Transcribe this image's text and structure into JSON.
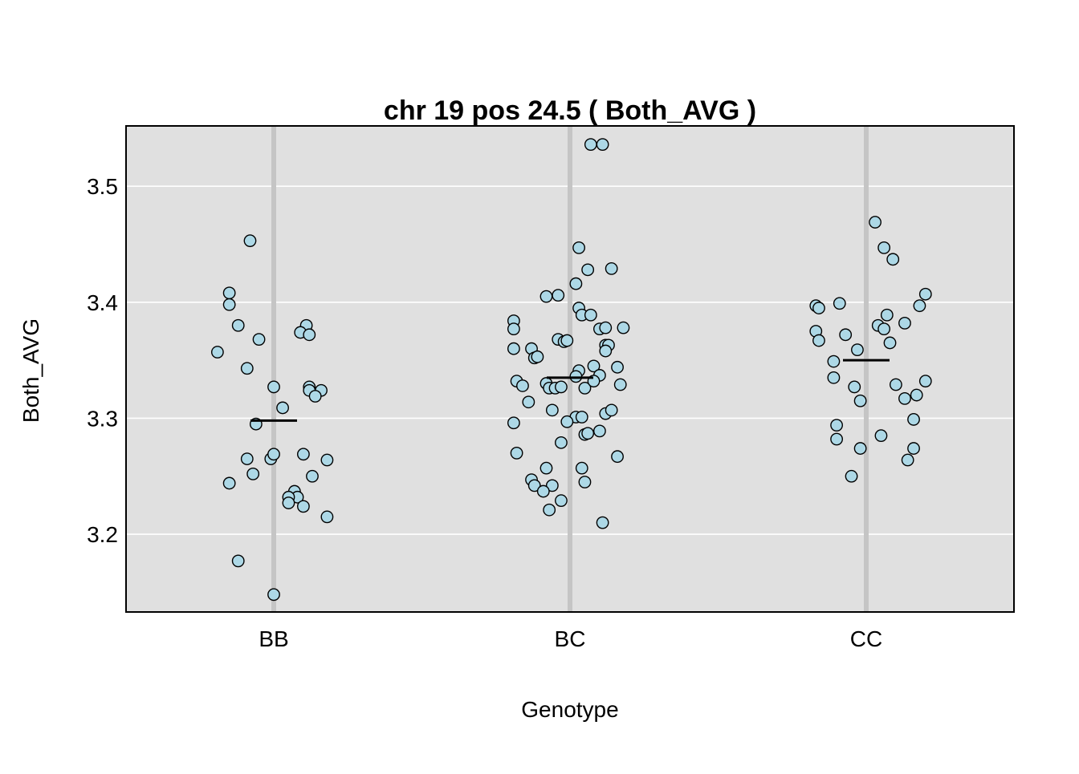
{
  "chart_data": {
    "type": "scatter",
    "title": "chr 19 pos 24.5 ( Both_AVG )",
    "xlabel": "Genotype",
    "ylabel": "Both_AVG",
    "categories": [
      "BB",
      "BC",
      "CC"
    ],
    "ylim": [
      3.133,
      3.552
    ],
    "yticks": [
      3.2,
      3.3,
      3.4,
      3.5
    ],
    "ytick_labels": [
      "3.2",
      "3.3",
      "3.4",
      "3.5"
    ],
    "grid": true,
    "legend": "none",
    "colors": {
      "panel_bg": "#e0e0e0",
      "grid": "#ffffff",
      "category_line": "#c5c5c5",
      "point_fill": "#add8e6",
      "point_stroke": "#000000",
      "mean_line": "#000000"
    },
    "groups": [
      {
        "category": "BB",
        "mean": 3.298,
        "points": [
          {
            "jitter": -0.08,
            "y": 3.453
          },
          {
            "jitter": -0.15,
            "y": 3.408
          },
          {
            "jitter": -0.15,
            "y": 3.398
          },
          {
            "jitter": -0.12,
            "y": 3.38
          },
          {
            "jitter": -0.05,
            "y": 3.368
          },
          {
            "jitter": -0.19,
            "y": 3.357
          },
          {
            "jitter": -0.09,
            "y": 3.343
          },
          {
            "jitter": 0.0,
            "y": 3.327
          },
          {
            "jitter": 0.03,
            "y": 3.309
          },
          {
            "jitter": -0.06,
            "y": 3.295
          },
          {
            "jitter": 0.11,
            "y": 3.38
          },
          {
            "jitter": 0.09,
            "y": 3.374
          },
          {
            "jitter": 0.12,
            "y": 3.372
          },
          {
            "jitter": 0.12,
            "y": 3.327
          },
          {
            "jitter": 0.12,
            "y": 3.324
          },
          {
            "jitter": 0.16,
            "y": 3.324
          },
          {
            "jitter": 0.14,
            "y": 3.319
          },
          {
            "jitter": -0.09,
            "y": 3.265
          },
          {
            "jitter": -0.15,
            "y": 3.244
          },
          {
            "jitter": -0.07,
            "y": 3.252
          },
          {
            "jitter": -0.01,
            "y": 3.265
          },
          {
            "jitter": 0.0,
            "y": 3.269
          },
          {
            "jitter": 0.1,
            "y": 3.269
          },
          {
            "jitter": 0.18,
            "y": 3.264
          },
          {
            "jitter": 0.13,
            "y": 3.25
          },
          {
            "jitter": 0.07,
            "y": 3.237
          },
          {
            "jitter": 0.08,
            "y": 3.232
          },
          {
            "jitter": 0.05,
            "y": 3.232
          },
          {
            "jitter": 0.05,
            "y": 3.227
          },
          {
            "jitter": 0.1,
            "y": 3.224
          },
          {
            "jitter": 0.18,
            "y": 3.215
          },
          {
            "jitter": -0.12,
            "y": 3.177
          },
          {
            "jitter": 0.0,
            "y": 3.148
          }
        ]
      },
      {
        "category": "BC",
        "mean": 3.335,
        "points": [
          {
            "jitter": 0.07,
            "y": 3.536
          },
          {
            "jitter": 0.11,
            "y": 3.536
          },
          {
            "jitter": 0.03,
            "y": 3.447
          },
          {
            "jitter": 0.06,
            "y": 3.428
          },
          {
            "jitter": 0.14,
            "y": 3.429
          },
          {
            "jitter": 0.02,
            "y": 3.416
          },
          {
            "jitter": -0.08,
            "y": 3.405
          },
          {
            "jitter": -0.04,
            "y": 3.406
          },
          {
            "jitter": 0.03,
            "y": 3.395
          },
          {
            "jitter": 0.04,
            "y": 3.389
          },
          {
            "jitter": 0.07,
            "y": 3.389
          },
          {
            "jitter": -0.19,
            "y": 3.384
          },
          {
            "jitter": -0.19,
            "y": 3.377
          },
          {
            "jitter": 0.1,
            "y": 3.377
          },
          {
            "jitter": 0.12,
            "y": 3.378
          },
          {
            "jitter": 0.18,
            "y": 3.378
          },
          {
            "jitter": -0.04,
            "y": 3.368
          },
          {
            "jitter": -0.02,
            "y": 3.366
          },
          {
            "jitter": -0.01,
            "y": 3.367
          },
          {
            "jitter": 0.12,
            "y": 3.363
          },
          {
            "jitter": 0.13,
            "y": 3.363
          },
          {
            "jitter": 0.12,
            "y": 3.358
          },
          {
            "jitter": -0.19,
            "y": 3.36
          },
          {
            "jitter": -0.13,
            "y": 3.36
          },
          {
            "jitter": -0.12,
            "y": 3.352
          },
          {
            "jitter": -0.11,
            "y": 3.353
          },
          {
            "jitter": 0.08,
            "y": 3.345
          },
          {
            "jitter": 0.16,
            "y": 3.344
          },
          {
            "jitter": 0.03,
            "y": 3.341
          },
          {
            "jitter": 0.02,
            "y": 3.336
          },
          {
            "jitter": 0.1,
            "y": 3.337
          },
          {
            "jitter": -0.18,
            "y": 3.332
          },
          {
            "jitter": -0.16,
            "y": 3.328
          },
          {
            "jitter": -0.08,
            "y": 3.33
          },
          {
            "jitter": -0.07,
            "y": 3.326
          },
          {
            "jitter": -0.05,
            "y": 3.326
          },
          {
            "jitter": -0.03,
            "y": 3.327
          },
          {
            "jitter": 0.05,
            "y": 3.326
          },
          {
            "jitter": 0.08,
            "y": 3.332
          },
          {
            "jitter": 0.17,
            "y": 3.329
          },
          {
            "jitter": -0.14,
            "y": 3.314
          },
          {
            "jitter": -0.06,
            "y": 3.307
          },
          {
            "jitter": 0.12,
            "y": 3.304
          },
          {
            "jitter": 0.14,
            "y": 3.307
          },
          {
            "jitter": -0.19,
            "y": 3.296
          },
          {
            "jitter": 0.02,
            "y": 3.301
          },
          {
            "jitter": 0.04,
            "y": 3.301
          },
          {
            "jitter": -0.01,
            "y": 3.297
          },
          {
            "jitter": 0.05,
            "y": 3.286
          },
          {
            "jitter": 0.06,
            "y": 3.287
          },
          {
            "jitter": 0.1,
            "y": 3.289
          },
          {
            "jitter": -0.03,
            "y": 3.279
          },
          {
            "jitter": -0.18,
            "y": 3.27
          },
          {
            "jitter": 0.16,
            "y": 3.267
          },
          {
            "jitter": -0.08,
            "y": 3.257
          },
          {
            "jitter": 0.04,
            "y": 3.257
          },
          {
            "jitter": -0.13,
            "y": 3.247
          },
          {
            "jitter": -0.12,
            "y": 3.242
          },
          {
            "jitter": -0.06,
            "y": 3.242
          },
          {
            "jitter": 0.05,
            "y": 3.245
          },
          {
            "jitter": -0.09,
            "y": 3.237
          },
          {
            "jitter": -0.03,
            "y": 3.229
          },
          {
            "jitter": -0.07,
            "y": 3.221
          },
          {
            "jitter": 0.11,
            "y": 3.21
          }
        ]
      },
      {
        "category": "CC",
        "mean": 3.35,
        "points": [
          {
            "jitter": 0.03,
            "y": 3.469
          },
          {
            "jitter": 0.06,
            "y": 3.447
          },
          {
            "jitter": 0.09,
            "y": 3.437
          },
          {
            "jitter": 0.2,
            "y": 3.407
          },
          {
            "jitter": -0.17,
            "y": 3.397
          },
          {
            "jitter": -0.16,
            "y": 3.395
          },
          {
            "jitter": -0.09,
            "y": 3.399
          },
          {
            "jitter": 0.18,
            "y": 3.397
          },
          {
            "jitter": 0.07,
            "y": 3.389
          },
          {
            "jitter": 0.13,
            "y": 3.382
          },
          {
            "jitter": 0.04,
            "y": 3.38
          },
          {
            "jitter": 0.06,
            "y": 3.377
          },
          {
            "jitter": -0.17,
            "y": 3.375
          },
          {
            "jitter": -0.07,
            "y": 3.372
          },
          {
            "jitter": -0.16,
            "y": 3.367
          },
          {
            "jitter": 0.08,
            "y": 3.365
          },
          {
            "jitter": -0.03,
            "y": 3.359
          },
          {
            "jitter": -0.11,
            "y": 3.349
          },
          {
            "jitter": -0.11,
            "y": 3.335
          },
          {
            "jitter": 0.2,
            "y": 3.332
          },
          {
            "jitter": 0.1,
            "y": 3.329
          },
          {
            "jitter": -0.04,
            "y": 3.327
          },
          {
            "jitter": 0.17,
            "y": 3.32
          },
          {
            "jitter": 0.13,
            "y": 3.317
          },
          {
            "jitter": -0.02,
            "y": 3.315
          },
          {
            "jitter": 0.16,
            "y": 3.299
          },
          {
            "jitter": -0.1,
            "y": 3.294
          },
          {
            "jitter": 0.05,
            "y": 3.285
          },
          {
            "jitter": -0.1,
            "y": 3.282
          },
          {
            "jitter": -0.02,
            "y": 3.274
          },
          {
            "jitter": 0.16,
            "y": 3.274
          },
          {
            "jitter": 0.14,
            "y": 3.264
          },
          {
            "jitter": -0.05,
            "y": 3.25
          }
        ]
      }
    ]
  }
}
